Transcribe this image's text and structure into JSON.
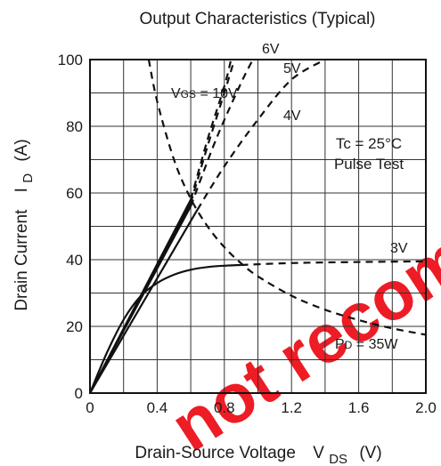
{
  "chart_data": {
    "type": "line",
    "title": "Output Characteristics (Typical)",
    "xlabel": {
      "text": "Drain-Source Voltage",
      "symbol": "V",
      "subscript": "DS",
      "unit": "(V)"
    },
    "ylabel": {
      "text": "Drain Current",
      "symbol": "I",
      "subscript": "D",
      "unit": "(A)"
    },
    "xlim": [
      0,
      2.0
    ],
    "ylim": [
      0,
      100
    ],
    "x_ticks": [
      "0",
      "0.4",
      "0.8",
      "1.2",
      "1.6",
      "2.0"
    ],
    "y_ticks": [
      "0",
      "20",
      "40",
      "60",
      "80",
      "100"
    ],
    "grid": true,
    "conditions": [
      "Tc = 25°C",
      "Pulse Test"
    ],
    "series": [
      {
        "name": "VGS = 10V",
        "style": "solid-then-dashed",
        "solid": [
          [
            0,
            0
          ],
          [
            0.6,
            58
          ]
        ],
        "dashed": [
          [
            0.6,
            58
          ],
          [
            0.7,
            76
          ],
          [
            0.8,
            92
          ],
          [
            0.84,
            100
          ]
        ]
      },
      {
        "name": "6V",
        "style": "solid-then-dashed",
        "solid": [
          [
            0,
            0
          ],
          [
            0.6,
            57
          ]
        ],
        "dashed": [
          [
            0.6,
            57
          ],
          [
            0.7,
            74
          ],
          [
            0.8,
            90
          ],
          [
            0.86,
            100
          ]
        ]
      },
      {
        "name": "5V",
        "style": "solid-then-dashed",
        "solid": [
          [
            0,
            0
          ],
          [
            0.6,
            56
          ]
        ],
        "dashed": [
          [
            0.6,
            56
          ],
          [
            0.75,
            76
          ],
          [
            0.9,
            93
          ],
          [
            0.97,
            100
          ]
        ]
      },
      {
        "name": "4V",
        "style": "solid-then-dashed",
        "solid": [
          [
            0,
            0
          ],
          [
            0.64,
            55
          ]
        ],
        "dashed": [
          [
            0.64,
            55
          ],
          [
            0.8,
            68
          ],
          [
            1.0,
            82
          ],
          [
            1.2,
            94
          ],
          [
            1.4,
            100
          ]
        ]
      },
      {
        "name": "3V",
        "style": "solid-then-dashed",
        "solid": [
          [
            0,
            0
          ],
          [
            0.1,
            12
          ],
          [
            0.2,
            22
          ],
          [
            0.3,
            29
          ],
          [
            0.4,
            33
          ],
          [
            0.5,
            35.5
          ],
          [
            0.6,
            37
          ],
          [
            0.7,
            37.8
          ],
          [
            0.8,
            38.2
          ],
          [
            0.9,
            38.4
          ]
        ],
        "dashed": [
          [
            0.9,
            38.4
          ],
          [
            1.2,
            39
          ],
          [
            1.6,
            39.3
          ],
          [
            2.0,
            39.5
          ]
        ]
      },
      {
        "name": "PD = 35W",
        "style": "dashed",
        "dashed": [
          [
            0.35,
            100
          ],
          [
            0.4,
            87.5
          ],
          [
            0.5,
            70
          ],
          [
            0.6,
            58.3
          ],
          [
            0.7,
            50
          ],
          [
            0.8,
            43.75
          ],
          [
            0.9,
            38.9
          ],
          [
            1.0,
            35
          ],
          [
            1.2,
            29.2
          ],
          [
            1.4,
            25
          ],
          [
            1.6,
            21.9
          ],
          [
            1.8,
            19.4
          ],
          [
            2.0,
            17.5
          ]
        ]
      }
    ],
    "curve_labels": [
      {
        "text": "VGS = 10V",
        "main": "V",
        "sub": "GS",
        "rest": " = 10V"
      },
      {
        "text": "6V"
      },
      {
        "text": "5V"
      },
      {
        "text": "4V"
      },
      {
        "text": "3V"
      },
      {
        "text": "PD = 35W",
        "main": "P",
        "sub": "D",
        "rest": " = 35W"
      }
    ]
  },
  "watermark": {
    "text": "not recommended",
    "color": "#ee1c25"
  }
}
